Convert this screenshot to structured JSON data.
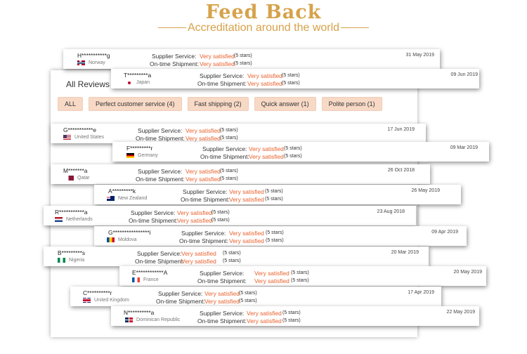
{
  "header": {
    "title": "Feed Back",
    "subtitle": "Accreditation around the world"
  },
  "panel": {
    "title": "All Reviews",
    "filters": [
      "ALL",
      "Perfect customer service (4)",
      "Fast shipping (2)",
      "Quick answer (1)",
      "Polite person (1)"
    ]
  },
  "labels": {
    "supplier": "Supplier Service:",
    "shipment": "On-time Shipment:",
    "rating": "Very satisfied",
    "stars": "(5 stars)"
  },
  "reviews": [
    {
      "name": "H***********g",
      "country": "Norway",
      "flag_icon": "norway-flag-icon",
      "date": "31 May 2019"
    },
    {
      "name": "T*********a",
      "country": "Japan",
      "flag_icon": "japan-flag-icon",
      "date": "09 Jun 2019"
    },
    {
      "name": "G***********e",
      "country": "United States",
      "flag_icon": "us-flag-icon",
      "date": "17 Jun 2019"
    },
    {
      "name": "F*********r",
      "country": "Germany",
      "flag_icon": "germany-flag-icon",
      "date": "09 Mar 2019"
    },
    {
      "name": "M*******a",
      "country": "Qatar",
      "flag_icon": "qatar-flag-icon",
      "date": "26 Oct 2018"
    },
    {
      "name": "A*********k",
      "country": "New Zealand",
      "flag_icon": "new-zealand-flag-icon",
      "date": "26 May 2019"
    },
    {
      "name": "R***********a",
      "country": "Netherlands",
      "flag_icon": "netherlands-flag-icon",
      "date": "23 Aug 2018"
    },
    {
      "name": "G****************i",
      "country": "Moldova",
      "flag_icon": "moldova-flag-icon",
      "date": "09 Apr 2019"
    },
    {
      "name": "B*********s",
      "country": "Nigeria",
      "flag_icon": "nigeria-flag-icon",
      "date": "20 Mar 2019"
    },
    {
      "name": "E************A",
      "country": "France",
      "flag_icon": "france-flag-icon",
      "date": "20 May 2019"
    },
    {
      "name": "C**********r",
      "country": "United Kingdom",
      "flag_icon": "uk-flag-icon",
      "date": "17 Apr 2019"
    },
    {
      "name": "N**********a",
      "country": "Dominican Republic",
      "flag_icon": "dominican-republic-flag-icon",
      "date": "22 May 2019"
    }
  ],
  "colors": {
    "accent": "#d6a24a",
    "rating": "#e8602c",
    "chip": "#f7d9c6"
  }
}
